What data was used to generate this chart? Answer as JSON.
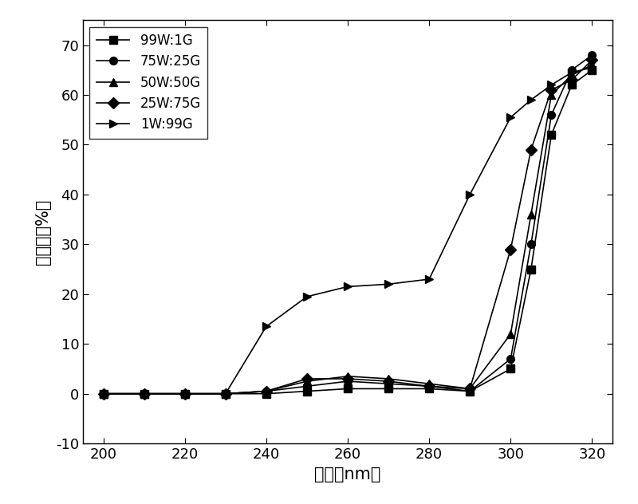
{
  "series": [
    {
      "label": "99W:1G",
      "marker": "s",
      "x": [
        200,
        210,
        220,
        230,
        240,
        250,
        260,
        270,
        280,
        290,
        300,
        305,
        310,
        315,
        320
      ],
      "y": [
        0,
        0,
        0,
        0,
        0,
        0.5,
        1.0,
        1.0,
        1.0,
        0.5,
        5.0,
        25.0,
        52.0,
        62.0,
        65.0
      ]
    },
    {
      "label": "75W:25G",
      "marker": "o",
      "x": [
        200,
        210,
        220,
        230,
        240,
        250,
        260,
        270,
        280,
        290,
        300,
        305,
        310,
        315,
        320
      ],
      "y": [
        0,
        0,
        0,
        0,
        0.5,
        1.5,
        2.5,
        2.0,
        1.5,
        0.5,
        7.0,
        30.0,
        56.0,
        65.0,
        68.0
      ]
    },
    {
      "label": "50W:50G",
      "marker": "^",
      "x": [
        200,
        210,
        220,
        230,
        240,
        250,
        260,
        270,
        280,
        290,
        300,
        305,
        310,
        315,
        320
      ],
      "y": [
        0,
        0,
        0,
        0,
        0.5,
        2.5,
        3.5,
        3.0,
        2.0,
        1.0,
        12.0,
        36.0,
        60.0,
        64.0,
        66.0
      ]
    },
    {
      "label": "25W:75G",
      "marker": "D",
      "x": [
        200,
        210,
        220,
        230,
        240,
        250,
        260,
        270,
        280,
        290,
        300,
        305,
        310,
        315,
        320
      ],
      "y": [
        0,
        0,
        0,
        0,
        0.5,
        3.0,
        3.0,
        2.5,
        1.5,
        1.0,
        29.0,
        49.0,
        61.0,
        63.0,
        67.0
      ]
    },
    {
      "label": "1W:99G",
      "marker": ">",
      "x": [
        200,
        210,
        220,
        230,
        240,
        250,
        260,
        270,
        280,
        290,
        300,
        305,
        310,
        315,
        320
      ],
      "y": [
        0,
        0,
        0,
        0,
        13.5,
        19.5,
        21.5,
        22.0,
        23.0,
        40.0,
        55.5,
        59.0,
        62.0,
        64.5,
        65.5
      ]
    }
  ],
  "xlabel": "波长（nm）",
  "ylabel": "透光率（%）",
  "xlim": [
    195,
    325
  ],
  "ylim": [
    -10,
    75
  ],
  "xticks": [
    200,
    220,
    240,
    260,
    280,
    300,
    320
  ],
  "yticks": [
    -10,
    0,
    10,
    20,
    30,
    40,
    50,
    60,
    70
  ],
  "line_color": "#000000",
  "marker_size": 7,
  "line_width": 1.2,
  "legend_loc": "upper left",
  "font_size_label": 15,
  "font_size_tick": 13,
  "font_size_legend": 12,
  "background_color": "#ffffff"
}
